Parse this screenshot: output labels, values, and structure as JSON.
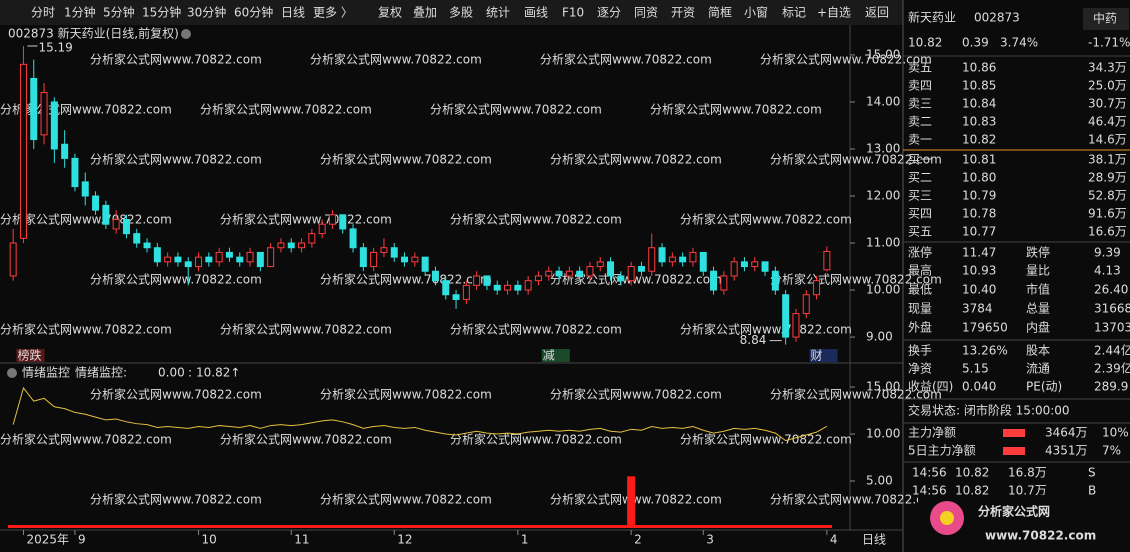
{
  "toolbar": [
    "分时",
    "1分钟",
    "5分钟",
    "15分钟",
    "30分钟",
    "60分钟",
    "日线",
    "更多 〉",
    "复权",
    "叠加",
    "多股",
    "统计",
    "画线",
    "F10",
    "逐分",
    "同资",
    "开资",
    "简框",
    "小窗",
    "标记",
    "+自选",
    "返回"
  ],
  "watermark": "分析家公式网www.70822.com",
  "logo": {
    "title": "分析家公式网",
    "url": "www.70822.com"
  },
  "period_label": "日线",
  "chart_data": [
    {
      "type": "candlestick",
      "title": "002873 新天药业(日线,前复权)",
      "up_color": "#ff3c3c",
      "down_color": "#2fe0e0",
      "ylim": [
        8.47,
        15.53
      ],
      "yticks": [
        {
          "value": 9,
          "label": "9.00"
        },
        {
          "value": 10,
          "label": "10.00"
        },
        {
          "value": 11,
          "label": "11.00"
        },
        {
          "value": 12,
          "label": "12.00"
        },
        {
          "value": 13,
          "label": "13.00"
        },
        {
          "value": 14,
          "label": "14.00"
        },
        {
          "value": 15,
          "label": "15.00"
        }
      ],
      "categories": [
        null,
        "2025年",
        null,
        null,
        null,
        null,
        "9",
        null,
        null,
        null,
        null,
        null,
        null,
        null,
        null,
        null,
        null,
        null,
        "10",
        null,
        null,
        null,
        null,
        null,
        null,
        null,
        null,
        "11",
        null,
        null,
        null,
        null,
        null,
        null,
        null,
        null,
        null,
        "12",
        null,
        null,
        null,
        null,
        null,
        null,
        null,
        null,
        null,
        null,
        null,
        "1",
        null,
        null,
        null,
        null,
        null,
        null,
        null,
        null,
        null,
        null,
        "2",
        null,
        null,
        null,
        null,
        null,
        null,
        "3",
        null,
        null,
        null,
        null,
        null,
        null,
        null,
        null,
        null,
        null,
        null,
        "4"
      ],
      "candles": [
        [
          10.3,
          11.3,
          10.2,
          11.0
        ],
        [
          11.1,
          15.19,
          11.0,
          14.8
        ],
        [
          14.5,
          14.9,
          13.0,
          13.2
        ],
        [
          13.3,
          14.4,
          13.1,
          14.2
        ],
        [
          14.0,
          14.1,
          12.7,
          13.0
        ],
        [
          13.1,
          13.4,
          12.6,
          12.8
        ],
        [
          12.8,
          12.9,
          12.1,
          12.2
        ],
        [
          12.3,
          12.5,
          11.8,
          12.0
        ],
        [
          12.0,
          12.1,
          11.6,
          11.7
        ],
        [
          11.8,
          11.9,
          11.3,
          11.4
        ],
        [
          11.3,
          11.7,
          11.2,
          11.5
        ],
        [
          11.5,
          11.6,
          11.1,
          11.2
        ],
        [
          11.2,
          11.3,
          10.9,
          11.0
        ],
        [
          11.0,
          11.1,
          10.8,
          10.9
        ],
        [
          10.9,
          11.0,
          10.5,
          10.6
        ],
        [
          10.6,
          10.8,
          10.5,
          10.7
        ],
        [
          10.7,
          10.8,
          10.5,
          10.6
        ],
        [
          10.6,
          10.7,
          10.1,
          10.5
        ],
        [
          10.5,
          10.8,
          10.4,
          10.7
        ],
        [
          10.7,
          10.8,
          10.5,
          10.6
        ],
        [
          10.6,
          10.9,
          10.5,
          10.8
        ],
        [
          10.8,
          10.9,
          10.6,
          10.7
        ],
        [
          10.7,
          10.8,
          10.5,
          10.6
        ],
        [
          10.6,
          10.9,
          10.5,
          10.8
        ],
        [
          10.8,
          10.8,
          10.4,
          10.5
        ],
        [
          10.5,
          11.0,
          10.5,
          10.9
        ],
        [
          10.9,
          11.1,
          10.8,
          11.0
        ],
        [
          11.0,
          11.1,
          10.8,
          10.9
        ],
        [
          10.9,
          11.1,
          10.8,
          11.0
        ],
        [
          11.0,
          11.3,
          10.9,
          11.2
        ],
        [
          11.2,
          11.5,
          11.1,
          11.4
        ],
        [
          11.4,
          11.7,
          11.3,
          11.6
        ],
        [
          11.6,
          11.6,
          11.2,
          11.3
        ],
        [
          11.3,
          11.4,
          10.8,
          10.9
        ],
        [
          10.9,
          11.0,
          10.4,
          10.5
        ],
        [
          10.5,
          10.9,
          10.4,
          10.8
        ],
        [
          10.8,
          11.1,
          10.7,
          10.9
        ],
        [
          10.9,
          11.0,
          10.6,
          10.7
        ],
        [
          10.7,
          10.8,
          10.5,
          10.6
        ],
        [
          10.6,
          10.8,
          10.5,
          10.7
        ],
        [
          10.7,
          10.7,
          10.3,
          10.4
        ],
        [
          10.4,
          10.5,
          10.1,
          10.2
        ],
        [
          10.2,
          10.3,
          9.8,
          9.9
        ],
        [
          9.9,
          10.0,
          9.6,
          9.8
        ],
        [
          9.8,
          10.2,
          9.7,
          10.1
        ],
        [
          10.1,
          10.4,
          10.0,
          10.3
        ],
        [
          10.3,
          10.3,
          10.0,
          10.1
        ],
        [
          10.1,
          10.2,
          9.9,
          10.0
        ],
        [
          10.0,
          10.2,
          9.9,
          10.1
        ],
        [
          10.1,
          10.2,
          9.9,
          10.0
        ],
        [
          10.0,
          10.3,
          9.9,
          10.2
        ],
        [
          10.2,
          10.4,
          10.1,
          10.3
        ],
        [
          10.3,
          10.5,
          10.2,
          10.4
        ],
        [
          10.4,
          10.5,
          10.2,
          10.3
        ],
        [
          10.3,
          10.5,
          10.2,
          10.4
        ],
        [
          10.4,
          10.5,
          10.2,
          10.3
        ],
        [
          10.3,
          10.6,
          10.2,
          10.5
        ],
        [
          10.5,
          10.7,
          10.4,
          10.6
        ],
        [
          10.6,
          10.7,
          10.2,
          10.3
        ],
        [
          10.3,
          10.4,
          10.1,
          10.2
        ],
        [
          10.2,
          10.6,
          10.1,
          10.5
        ],
        [
          10.5,
          10.6,
          10.3,
          10.4
        ],
        [
          10.4,
          11.2,
          10.3,
          10.9
        ],
        [
          10.9,
          11.0,
          10.5,
          10.6
        ],
        [
          10.6,
          10.8,
          10.5,
          10.7
        ],
        [
          10.7,
          10.8,
          10.5,
          10.6
        ],
        [
          10.6,
          10.9,
          10.5,
          10.8
        ],
        [
          10.8,
          10.8,
          10.3,
          10.4
        ],
        [
          10.4,
          10.5,
          9.9,
          10.0
        ],
        [
          10.0,
          10.4,
          9.9,
          10.3
        ],
        [
          10.3,
          10.7,
          10.2,
          10.6
        ],
        [
          10.6,
          10.7,
          10.4,
          10.5
        ],
        [
          10.5,
          10.7,
          10.4,
          10.6
        ],
        [
          10.6,
          10.6,
          10.3,
          10.4
        ],
        [
          10.4,
          10.5,
          9.9,
          10.0
        ],
        [
          9.9,
          10.0,
          8.84,
          9.0
        ],
        [
          9.0,
          9.6,
          8.9,
          9.5
        ],
        [
          9.5,
          10.0,
          9.4,
          9.9
        ],
        [
          9.9,
          10.3,
          9.8,
          10.2
        ],
        [
          10.43,
          10.93,
          10.4,
          10.82
        ]
      ],
      "high_label": 15.19,
      "low_label": 8.84,
      "events": [
        {
          "category_index": 1,
          "label": "榜跌"
        },
        {
          "category_index": 52,
          "label": "减"
        },
        {
          "category_index": 78,
          "label": "财"
        }
      ]
    },
    {
      "type": "line-bar",
      "title": "情绪监控",
      "legend": {
        "label": "情绪监控:",
        "values": [
          {
            "value": 0,
            "label": "0.00"
          },
          {
            "value": 10.82,
            "label": "10.82↑"
          }
        ]
      },
      "ylim": [
        0,
        16.6
      ],
      "yticks": [
        {
          "value": 5,
          "label": "5.00"
        },
        {
          "value": 10,
          "label": "10.00"
        },
        {
          "value": 15,
          "label": "15.00"
        }
      ],
      "series": [
        {
          "name": "情绪监控",
          "kind": "line",
          "color": "#e8c040",
          "values": [
            11.0,
            14.9,
            13.5,
            13.8,
            12.9,
            12.7,
            12.3,
            12.1,
            11.8,
            11.5,
            11.6,
            11.3,
            11.1,
            11.0,
            10.7,
            10.8,
            10.7,
            10.6,
            10.8,
            10.7,
            10.9,
            10.8,
            10.7,
            10.9,
            10.6,
            10.9,
            11.0,
            10.9,
            11.0,
            11.2,
            11.4,
            11.5,
            11.3,
            11.0,
            10.6,
            10.8,
            10.9,
            10.7,
            10.6,
            10.7,
            10.4,
            10.2,
            10.0,
            9.9,
            10.1,
            10.3,
            10.1,
            10.0,
            10.1,
            10.0,
            10.2,
            10.3,
            10.4,
            10.3,
            10.4,
            10.3,
            10.5,
            10.6,
            10.3,
            10.2,
            10.5,
            10.4,
            10.8,
            10.6,
            10.7,
            10.6,
            10.8,
            10.4,
            10.1,
            10.3,
            10.6,
            10.5,
            10.6,
            10.4,
            10.1,
            9.3,
            9.6,
            9.9,
            10.2,
            10.82
          ]
        },
        {
          "name": "情绪监控",
          "kind": "bar",
          "color": "#ff1a1a",
          "values": [
            0,
            0,
            0,
            0,
            0,
            0,
            0,
            0,
            0,
            0,
            0,
            0,
            0,
            0,
            0,
            0,
            0,
            0,
            0,
            0,
            0,
            0,
            0,
            0,
            0,
            0,
            0,
            0,
            0,
            0,
            0,
            0,
            0,
            0,
            0,
            0,
            0,
            0,
            0,
            0,
            0,
            0,
            0,
            0,
            0,
            0,
            0,
            0,
            0,
            0,
            0,
            0,
            0,
            0,
            0,
            0,
            0,
            0,
            0,
            0,
            5.5,
            0,
            0,
            0,
            0,
            0,
            0,
            0,
            0,
            0,
            0,
            0,
            0,
            0,
            0,
            0,
            0,
            0,
            0,
            0
          ]
        }
      ]
    }
  ],
  "quote": {
    "name": "新天药业",
    "code": "002873",
    "sector": "中药",
    "price": "10.82",
    "change": "0.39",
    "pct": "3.74%",
    "sector_pct": "-1.71%"
  },
  "order_book": {
    "sell": [
      [
        "卖五",
        "10.86",
        "34.3万"
      ],
      [
        "卖四",
        "10.85",
        "25.0万"
      ],
      [
        "卖三",
        "10.84",
        "30.7万"
      ],
      [
        "卖二",
        "10.83",
        "46.4万"
      ],
      [
        "卖一",
        "10.82",
        "14.6万"
      ]
    ],
    "buy": [
      [
        "买一",
        "10.81",
        "38.1万"
      ],
      [
        "买二",
        "10.80",
        "28.9万"
      ],
      [
        "买三",
        "10.79",
        "52.8万"
      ],
      [
        "买四",
        "10.78",
        "91.6万"
      ],
      [
        "买五",
        "10.77",
        "16.6万"
      ]
    ]
  },
  "stats": [
    [
      "涨停",
      "11.47",
      "跌停",
      "9.39"
    ],
    [
      "最高",
      "10.93",
      "量比",
      "4.13"
    ],
    [
      "最低",
      "10.40",
      "市值",
      "26.40"
    ],
    [
      "现量",
      "3784",
      "总量",
      "31668"
    ],
    [
      "外盘",
      "179650",
      "内盘",
      "13703"
    ],
    [
      "换手",
      "13.26%",
      "股本",
      "2.44亿"
    ],
    [
      "净资",
      "5.15",
      "流通",
      "2.39亿"
    ],
    [
      "收益(四)",
      "0.040",
      "PE(动)",
      "289.9"
    ]
  ],
  "trade_status": "交易状态: 闭市阶段 15:00:00",
  "fund_flow": [
    [
      "主力净额",
      "3464万",
      "10%"
    ],
    [
      "5日主力净额",
      "4351万",
      "7%"
    ]
  ],
  "ticks": [
    [
      "14:56",
      "10.82",
      "16.8万",
      "S"
    ],
    [
      "14:56",
      "10.82",
      "10.7万",
      "B"
    ]
  ]
}
